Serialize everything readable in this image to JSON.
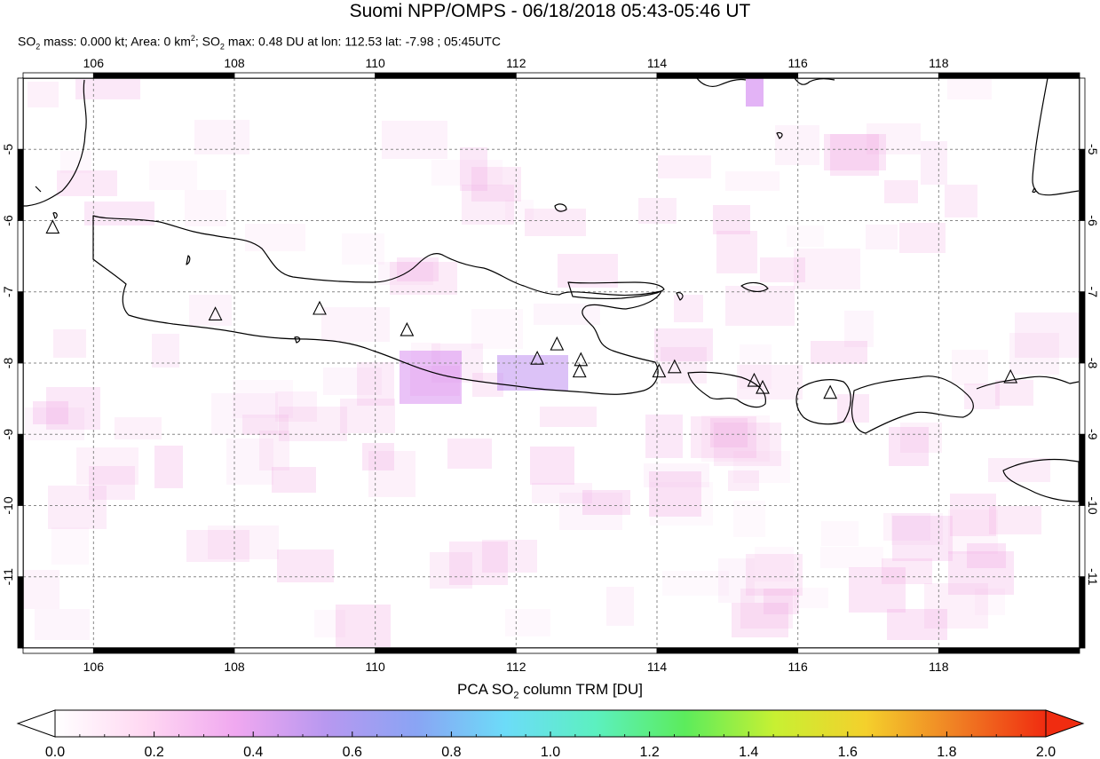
{
  "title": "Suomi NPP/OMPS - 06/18/2018 05:43-05:46 UT",
  "subtitle": {
    "p1": "SO",
    "sub1": "2",
    "p2": " mass: 0.000 kt; Area: 0 km",
    "sup1": "2",
    "p3": "; SO",
    "sub2": "2",
    "p4": " max: 0.48 DU at lon: 112.53 lat: -7.98 ; 05:45UTC"
  },
  "map": {
    "lon_range": [
      105,
      120
    ],
    "lat_range": [
      -12,
      -4
    ],
    "lon_ticks": [
      "106",
      "108",
      "110",
      "112",
      "114",
      "116",
      "118"
    ],
    "lat_ticks": [
      "-5",
      "-6",
      "-7",
      "-8",
      "-9",
      "-10",
      "-11"
    ],
    "grid": true,
    "volcano_icon": "triangle-volcano-icon",
    "volcanoes": [
      {
        "lon": 105.42,
        "lat": -6.1
      },
      {
        "lon": 107.73,
        "lat": -7.32
      },
      {
        "lon": 109.21,
        "lat": -7.24
      },
      {
        "lon": 110.45,
        "lat": -7.54
      },
      {
        "lon": 112.3,
        "lat": -7.94
      },
      {
        "lon": 112.58,
        "lat": -7.74
      },
      {
        "lon": 112.92,
        "lat": -7.96
      },
      {
        "lon": 112.9,
        "lat": -8.12
      },
      {
        "lon": 114.03,
        "lat": -8.12
      },
      {
        "lon": 114.25,
        "lat": -8.06
      },
      {
        "lon": 115.38,
        "lat": -8.25
      },
      {
        "lon": 115.5,
        "lat": -8.35
      },
      {
        "lon": 116.46,
        "lat": -8.42
      },
      {
        "lon": 119.02,
        "lat": -8.2
      }
    ]
  },
  "colorbar": {
    "title_p1": "PCA SO",
    "title_sub": "2",
    "title_p2": " column TRM [DU]",
    "min": 0.0,
    "max": 2.0,
    "labels": [
      "0.0",
      "0.2",
      "0.4",
      "0.6",
      "0.8",
      "1.0",
      "1.2",
      "1.4",
      "1.6",
      "1.8",
      "2.0"
    ],
    "colors": [
      "#ffffff",
      "#ffd8f2",
      "#f0a8f0",
      "#b898f0",
      "#8aa4f4",
      "#6cdcf8",
      "#5cf0c0",
      "#5cec5c",
      "#c8f032",
      "#f4d02c",
      "#f08024",
      "#f02c10"
    ]
  }
}
